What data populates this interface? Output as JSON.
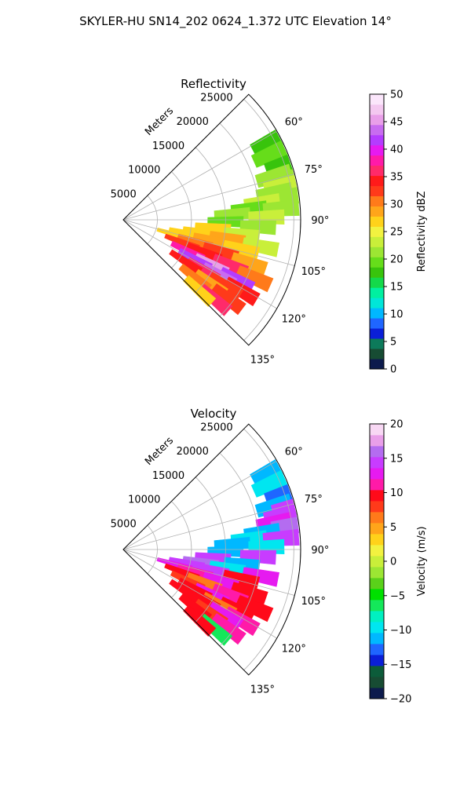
{
  "figure": {
    "title": "SKYLER-HU  SN14_202  0624_1.372 UTC Elevation 14°"
  },
  "chart_data": [
    {
      "type": "heatmap",
      "subtype": "polar-sector (radar PPI)",
      "title": "Reflectivity",
      "radial_label": "Meters",
      "radial_ticks": [
        5000,
        10000,
        15000,
        20000,
        25000
      ],
      "radial_tick_labels": [
        "5000",
        "10000",
        "15000",
        "20000",
        "25000"
      ],
      "angle_ticks_deg": [
        60,
        75,
        90,
        105,
        120,
        135
      ],
      "angle_tick_labels": [
        "60°",
        "75°",
        "90°",
        "105°",
        "120°",
        "135°"
      ],
      "angle_range_deg": [
        45,
        135
      ],
      "radial_range": [
        0,
        26000
      ],
      "grid": true,
      "colorbar": {
        "label": "Reflectivity dBZ",
        "range": [
          0,
          50
        ],
        "ticks": [
          0,
          5,
          10,
          15,
          20,
          25,
          30,
          35,
          40,
          45,
          50
        ],
        "tick_labels": [
          "0",
          "5",
          "10",
          "15",
          "20",
          "25",
          "30",
          "35",
          "40",
          "45",
          "50"
        ],
        "colors": [
          "#0d1b4d",
          "#174c33",
          "#0c7a5a",
          "#0a1fd8",
          "#1f66ff",
          "#00b8ff",
          "#00e6d8",
          "#00f0a0",
          "#14d94a",
          "#38c40c",
          "#66dd1a",
          "#9ce633",
          "#c9ef3a",
          "#f2f240",
          "#ffd21a",
          "#ffa51a",
          "#ff7a1a",
          "#ff3a1a",
          "#ff1a1a",
          "#ff2a6a",
          "#ff1aa8",
          "#e61af0",
          "#b43cff",
          "#c86cf0",
          "#e99fe9",
          "#f4c8f0",
          "#fbe6fb"
        ]
      },
      "cells": [
        {
          "az": 62,
          "r": 24200,
          "dz": 18
        },
        {
          "az": 66,
          "r": 23600,
          "dz": 20
        },
        {
          "az": 71,
          "r": 24800,
          "dz": 17
        },
        {
          "az": 74,
          "r": 23000,
          "dz": 21
        },
        {
          "az": 76,
          "r": 25200,
          "dz": 22
        },
        {
          "az": 78,
          "r": 23800,
          "dz": 23
        },
        {
          "az": 80,
          "r": 22500,
          "dz": 21
        },
        {
          "az": 82,
          "r": 24600,
          "dz": 22
        },
        {
          "az": 83,
          "r": 20500,
          "dz": 23
        },
        {
          "az": 85,
          "r": 18500,
          "dz": 20
        },
        {
          "az": 86,
          "r": 23200,
          "dz": 22
        },
        {
          "az": 87,
          "r": 16000,
          "dz": 21
        },
        {
          "az": 89,
          "r": 21000,
          "dz": 24
        },
        {
          "az": 91,
          "r": 15000,
          "dz": 19
        },
        {
          "az": 93,
          "r": 19800,
          "dz": 22
        },
        {
          "az": 95,
          "r": 13200,
          "dz": 27
        },
        {
          "az": 97,
          "r": 17500,
          "dz": 24
        },
        {
          "az": 99,
          "r": 11500,
          "dz": 26
        },
        {
          "az": 100,
          "r": 15500,
          "dz": 28
        },
        {
          "az": 101,
          "r": 20500,
          "dz": 23
        },
        {
          "az": 102,
          "r": 9500,
          "dz": 27
        },
        {
          "az": 103,
          "r": 13200,
          "dz": 29
        },
        {
          "az": 104,
          "r": 17800,
          "dz": 27
        },
        {
          "az": 106,
          "r": 7800,
          "dz": 26
        },
        {
          "az": 107,
          "r": 11000,
          "dz": 30
        },
        {
          "az": 108,
          "r": 15000,
          "dz": 33
        },
        {
          "az": 109,
          "r": 19500,
          "dz": 28
        },
        {
          "az": 111,
          "r": 9200,
          "dz": 32
        },
        {
          "az": 112,
          "r": 12800,
          "dz": 35
        },
        {
          "az": 113,
          "r": 17000,
          "dz": 36
        },
        {
          "az": 114,
          "r": 21000,
          "dz": 30
        },
        {
          "az": 116,
          "r": 10500,
          "dz": 38
        },
        {
          "az": 117,
          "r": 14500,
          "dz": 45
        },
        {
          "az": 118,
          "r": 18800,
          "dz": 41
        },
        {
          "az": 119,
          "r": 12000,
          "dz": 42
        },
        {
          "az": 120,
          "r": 16200,
          "dz": 44
        },
        {
          "az": 121,
          "r": 20200,
          "dz": 34
        },
        {
          "az": 122,
          "r": 13800,
          "dz": 37
        },
        {
          "az": 123,
          "r": 17800,
          "dz": 33
        },
        {
          "az": 124,
          "r": 11000,
          "dz": 35
        },
        {
          "az": 126,
          "r": 15800,
          "dz": 29
        },
        {
          "az": 127,
          "r": 19200,
          "dz": 32
        },
        {
          "az": 129,
          "r": 13500,
          "dz": 30
        },
        {
          "az": 131,
          "r": 17800,
          "dz": 36
        },
        {
          "az": 133,
          "r": 15200,
          "dz": 27
        }
      ]
    },
    {
      "type": "heatmap",
      "subtype": "polar-sector (radar PPI)",
      "title": "Velocity",
      "radial_label": "Meters",
      "radial_ticks": [
        5000,
        10000,
        15000,
        20000,
        25000
      ],
      "radial_tick_labels": [
        "5000",
        "10000",
        "15000",
        "20000",
        "25000"
      ],
      "angle_ticks_deg": [
        60,
        75,
        90,
        105,
        120,
        135
      ],
      "angle_tick_labels": [
        "60°",
        "75°",
        "90°",
        "105°",
        "120°",
        "135°"
      ],
      "angle_range_deg": [
        45,
        135
      ],
      "radial_range": [
        0,
        26000
      ],
      "grid": true,
      "colorbar": {
        "label": "Velocity (m/s)",
        "range": [
          -20,
          20
        ],
        "ticks": [
          -20,
          -15,
          -10,
          -5,
          0,
          5,
          10,
          15,
          20
        ],
        "tick_labels": [
          "−20",
          "−15",
          "−10",
          "−5",
          "0",
          "5",
          "10",
          "15",
          "20"
        ],
        "colors": [
          "#0d1b4d",
          "#174c33",
          "#0c5c3a",
          "#0a1fd8",
          "#1f66ff",
          "#00b8ff",
          "#00e6f0",
          "#00f0c0",
          "#14e85a",
          "#00e000",
          "#5ad11a",
          "#9ce633",
          "#c9ef3a",
          "#f2f240",
          "#ffd21a",
          "#ffa51a",
          "#ff7a1a",
          "#ff3a1a",
          "#ff0a1a",
          "#ff1aa8",
          "#e61af0",
          "#c83cff",
          "#b46cf0",
          "#e99fe9",
          "#f8d8f4"
        ]
      },
      "cells": [
        {
          "az": 62,
          "r": 24200,
          "v": -12
        },
        {
          "az": 66,
          "r": 23600,
          "v": -10
        },
        {
          "az": 71,
          "r": 24800,
          "v": -13
        },
        {
          "az": 74,
          "r": 23000,
          "v": -11
        },
        {
          "az": 76,
          "r": 25200,
          "v": 14
        },
        {
          "az": 78,
          "r": 23800,
          "v": 15
        },
        {
          "az": 80,
          "r": 22500,
          "v": 13
        },
        {
          "az": 82,
          "r": 24600,
          "v": 16
        },
        {
          "az": 83,
          "r": 20500,
          "v": -12
        },
        {
          "az": 85,
          "r": 18500,
          "v": -10
        },
        {
          "az": 86,
          "r": 23200,
          "v": 14
        },
        {
          "az": 87,
          "r": 16000,
          "v": -11
        },
        {
          "az": 89,
          "r": 21000,
          "v": -9
        },
        {
          "az": 91,
          "r": 15000,
          "v": -12
        },
        {
          "az": 93,
          "r": 19800,
          "v": 15
        },
        {
          "az": 95,
          "r": 13200,
          "v": 14
        },
        {
          "az": 97,
          "r": 17500,
          "v": -11
        },
        {
          "az": 99,
          "r": 11500,
          "v": 16
        },
        {
          "az": 100,
          "r": 15500,
          "v": -10
        },
        {
          "az": 101,
          "r": 20500,
          "v": 13
        },
        {
          "az": 102,
          "r": 9500,
          "v": 15
        },
        {
          "az": 103,
          "r": 13200,
          "v": 14
        },
        {
          "az": 104,
          "r": 17800,
          "v": 9
        },
        {
          "az": 106,
          "r": 7800,
          "v": 12
        },
        {
          "az": 107,
          "r": 11000,
          "v": 11
        },
        {
          "az": 108,
          "r": 15000,
          "v": 12
        },
        {
          "az": 109,
          "r": 19500,
          "v": 10
        },
        {
          "az": 111,
          "r": 9200,
          "v": 10
        },
        {
          "az": 112,
          "r": 12800,
          "v": 6
        },
        {
          "az": 113,
          "r": 17000,
          "v": 11
        },
        {
          "az": 114,
          "r": 21000,
          "v": 9
        },
        {
          "az": 116,
          "r": 10500,
          "v": 8
        },
        {
          "az": 117,
          "r": 14500,
          "v": 12
        },
        {
          "az": 118,
          "r": 18800,
          "v": 10
        },
        {
          "az": 119,
          "r": 12000,
          "v": 10
        },
        {
          "az": 120,
          "r": 16200,
          "v": 7
        },
        {
          "az": 121,
          "r": 20200,
          "v": 11
        },
        {
          "az": 122,
          "r": 13800,
          "v": 9
        },
        {
          "az": 123,
          "r": 17800,
          "v": 12
        },
        {
          "az": 124,
          "r": 11000,
          "v": 10
        },
        {
          "az": 126,
          "r": 15800,
          "v": 8
        },
        {
          "az": 127,
          "r": 19200,
          "v": 11
        },
        {
          "az": 129,
          "r": 13500,
          "v": 10
        },
        {
          "az": 131,
          "r": 17800,
          "v": -6
        },
        {
          "az": 133,
          "r": 15200,
          "v": 9
        }
      ]
    }
  ]
}
